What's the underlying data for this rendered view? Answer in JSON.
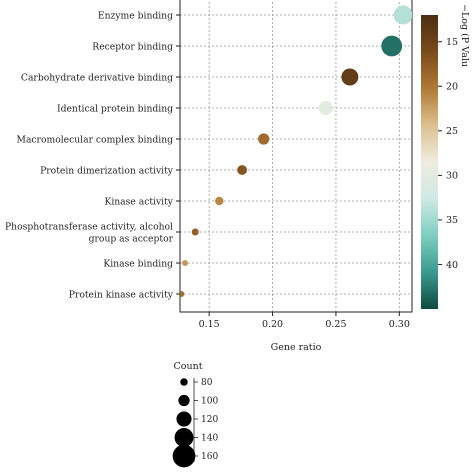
{
  "chart_data": {
    "type": "scatter",
    "xlabel": "Gene ratio",
    "xticks": [
      0.15,
      0.2,
      0.25,
      0.3
    ],
    "xlim": [
      0.127,
      0.31
    ],
    "points": [
      {
        "label": "Enzyme binding",
        "x": 0.303,
        "count": 140,
        "neglogp": 34
      },
      {
        "label": "Receptor binding",
        "x": 0.294,
        "count": 150,
        "neglogp": 43
      },
      {
        "label": "Carbohydrate derivative binding",
        "x": 0.261,
        "count": 130,
        "neglogp": 14
      },
      {
        "label": "Identical protein binding",
        "x": 0.242,
        "count": 115,
        "neglogp": 30
      },
      {
        "label": "Macromolecular complex binding",
        "x": 0.193,
        "count": 100,
        "neglogp": 19
      },
      {
        "label": "Protein dimerization activity",
        "x": 0.176,
        "count": 92,
        "neglogp": 17
      },
      {
        "label": "Kinase activity",
        "x": 0.158,
        "count": 85,
        "neglogp": 21
      },
      {
        "label": "Phosphotransferase activity, alcohol group as acceptor",
        "label_lines": [
          "Phosphotransferase activity, alcohol",
          "group as acceptor"
        ],
        "x": 0.139,
        "count": 78,
        "neglogp": 18
      },
      {
        "label": "Kinase binding",
        "x": 0.131,
        "count": 72,
        "neglogp": 22
      },
      {
        "label": "Protein kinase activity",
        "x": 0.128,
        "count": 72,
        "neglogp": 19
      }
    ],
    "color_legend": {
      "title": "−Log (P Valu",
      "ticks": [
        15,
        20,
        25,
        30,
        35,
        40
      ],
      "range": [
        12,
        45
      ],
      "stops": [
        "#4a2f12",
        "#7a4a1a",
        "#b07a35",
        "#dcc08e",
        "#efece0",
        "#cfe9e4",
        "#7fcfc0",
        "#3a9b8e",
        "#0e4a40"
      ]
    },
    "size_legend": {
      "title": "Count",
      "ticks": [
        80,
        100,
        120,
        140,
        160
      ]
    },
    "grid": true,
    "legend_placement": "right"
  }
}
